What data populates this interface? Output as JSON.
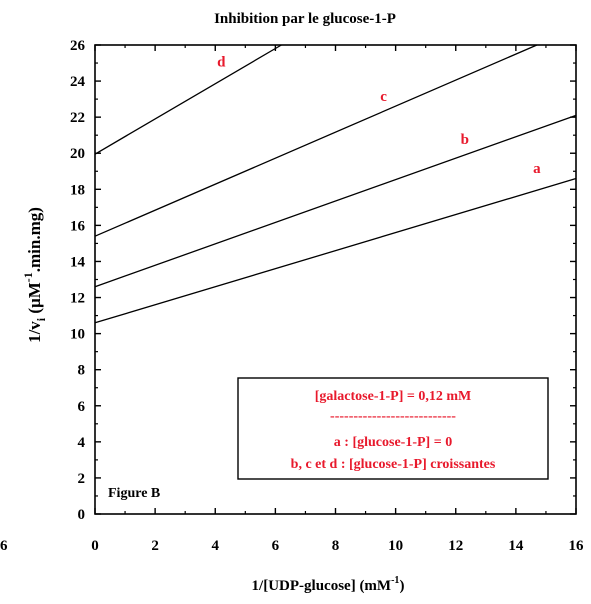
{
  "chart_data": {
    "type": "line",
    "title": "Inhibition par le glucose-1-P",
    "xlabel": "1/[UDP-glucose] (mM",
    "xlabel_sup": "-1",
    "xlabel_end": ")",
    "ylabel": "1/v",
    "ylabel_sub": "i",
    "ylabel_mid": " (μM",
    "ylabel_sup": "-1",
    "ylabel_end": ".min.mg)",
    "xlim": [
      0,
      16
    ],
    "ylim": [
      0,
      26
    ],
    "x_ticks": [
      0,
      2,
      4,
      6,
      8,
      10,
      12,
      14,
      16
    ],
    "x_tick_labels": [
      "0",
      "2",
      "4",
      "6",
      "8",
      "10",
      "12",
      "14",
      "16"
    ],
    "y_ticks": [
      0,
      2,
      4,
      6,
      8,
      10,
      12,
      14,
      16,
      18,
      20,
      22,
      24,
      26
    ],
    "y_tick_labels": [
      "0",
      "2",
      "4",
      "6",
      "8",
      "10",
      "12",
      "14",
      "16",
      "18",
      "20",
      "22",
      "24",
      "26"
    ],
    "left_edge_tick_label": "6",
    "grid": false,
    "series_color": "#000000",
    "label_color": "#e8192c",
    "series": [
      {
        "name": "a",
        "x": [
          0,
          16
        ],
        "y": [
          10.6,
          18.6
        ],
        "label_x": 14.7,
        "label_y": 18.9
      },
      {
        "name": "b",
        "x": [
          0,
          16
        ],
        "y": [
          12.6,
          22.1
        ],
        "label_x": 12.3,
        "label_y": 20.5
      },
      {
        "name": "c",
        "x": [
          0,
          14.7
        ],
        "y": [
          15.4,
          26
        ],
        "label_x": 9.6,
        "label_y": 22.9
      },
      {
        "name": "d",
        "x": [
          0,
          6.2
        ],
        "y": [
          19.95,
          26
        ],
        "label_x": 4.2,
        "label_y": 24.8
      }
    ],
    "legend_box": {
      "placement": "bottom-right",
      "lines": [
        "[galactose-1-P] = 0,12 mM",
        "---------------------------",
        "a : [glucose-1-P] = 0",
        "b, c et d : [glucose-1-P] croissantes"
      ]
    },
    "annotation": "Figure B"
  }
}
